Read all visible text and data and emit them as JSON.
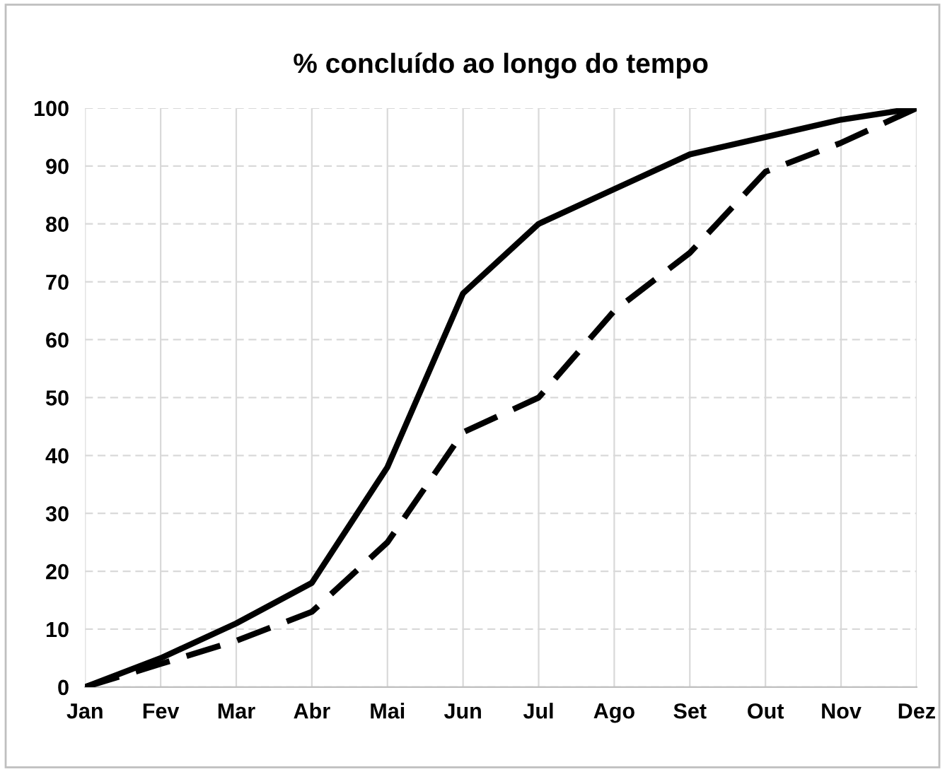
{
  "chart_data": {
    "type": "line",
    "title": "% concluído ao longo do tempo",
    "categories": [
      "Jan",
      "Fev",
      "Mar",
      "Abr",
      "Mai",
      "Jun",
      "Jul",
      "Ago",
      "Set",
      "Out",
      "Nov",
      "Dez"
    ],
    "series": [
      {
        "color": "#000000",
        "line_style": "solid",
        "values": [
          0,
          5,
          11,
          18,
          38,
          68,
          80,
          86,
          92,
          95,
          98,
          100
        ]
      },
      {
        "color": "#000000",
        "line_style": "dashed",
        "values": [
          0,
          4,
          8,
          13,
          25,
          44,
          50,
          65,
          75,
          89,
          94,
          100
        ]
      }
    ],
    "ylim": [
      0,
      100
    ],
    "yticks": [
      0,
      10,
      20,
      30,
      40,
      50,
      60,
      70,
      80,
      90,
      100
    ],
    "grid": true,
    "marker": "none"
  }
}
